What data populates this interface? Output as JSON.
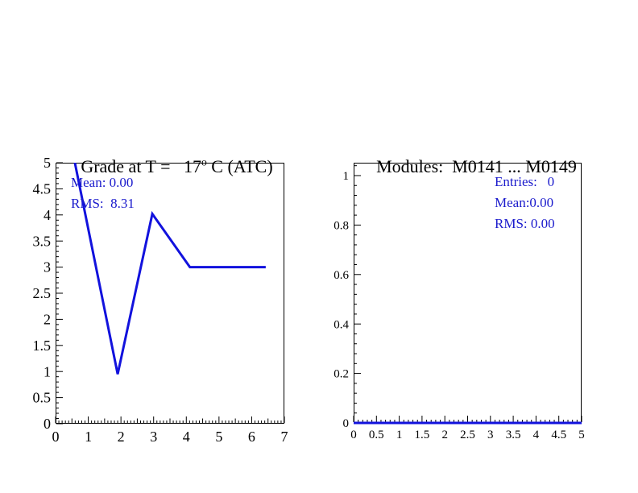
{
  "page": {
    "background": "#ffffff"
  },
  "colors": {
    "line": "#1212dd",
    "stats_text": "#1a1acc",
    "axis": "#000000"
  },
  "chart_data": [
    {
      "type": "line",
      "title": "Grade at T = 17° C (ATC)",
      "title_pre": "Grade at T =   17",
      "title_sup": "o",
      "title_post": " C (ATC)",
      "stats": [
        "Mean: 0.00",
        "RMS:  8.31"
      ],
      "xlim": [
        0,
        7
      ],
      "ylim": [
        0,
        5
      ],
      "xlabel": "",
      "ylabel": "",
      "grid": false,
      "legend": false,
      "xticks": [
        {
          "v": 0,
          "label": "0"
        },
        {
          "v": 1,
          "label": "1"
        },
        {
          "v": 2,
          "label": "2"
        },
        {
          "v": 3,
          "label": "3"
        },
        {
          "v": 4,
          "label": "4"
        },
        {
          "v": 5,
          "label": "5"
        },
        {
          "v": 6,
          "label": "6"
        },
        {
          "v": 7,
          "label": "7"
        }
      ],
      "yticks": [
        {
          "v": 0,
          "label": "0"
        },
        {
          "v": 0.5,
          "label": "0.5"
        },
        {
          "v": 1,
          "label": "1"
        },
        {
          "v": 1.5,
          "label": "1.5"
        },
        {
          "v": 2,
          "label": "2"
        },
        {
          "v": 2.5,
          "label": "2.5"
        },
        {
          "v": 3,
          "label": "3"
        },
        {
          "v": 3.5,
          "label": "3.5"
        },
        {
          "v": 4,
          "label": "4"
        },
        {
          "v": 4.5,
          "label": "4.5"
        },
        {
          "v": 5,
          "label": "5"
        }
      ],
      "x_minor_step": 0.1,
      "x_medium_step": 0.5,
      "y_minor_step": 0.1,
      "series": [
        {
          "name": "grade-line",
          "x": [
            0.59,
            1.9,
            2.96,
            4.11,
            6.43
          ],
          "y": [
            5.0,
            0.95,
            4.02,
            3.0,
            3.0
          ]
        }
      ]
    },
    {
      "type": "line",
      "title": "Modules:  M0141 ... M0149",
      "title_pre": "Modules:  M0141 ... M0149",
      "title_sup": "",
      "title_post": "",
      "stats": [
        "Entries:   0",
        "Mean:0.00",
        "RMS: 0.00"
      ],
      "xlim": [
        0,
        5
      ],
      "ylim": [
        0,
        1.052
      ],
      "xlabel": "",
      "ylabel": "",
      "grid": false,
      "legend": false,
      "xticks": [
        {
          "v": 0,
          "label": "0"
        },
        {
          "v": 0.5,
          "label": "0.5"
        },
        {
          "v": 1,
          "label": "1"
        },
        {
          "v": 1.5,
          "label": "1.5"
        },
        {
          "v": 2,
          "label": "2"
        },
        {
          "v": 2.5,
          "label": "2.5"
        },
        {
          "v": 3,
          "label": "3"
        },
        {
          "v": 3.5,
          "label": "3.5"
        },
        {
          "v": 4,
          "label": "4"
        },
        {
          "v": 4.5,
          "label": "4.5"
        },
        {
          "v": 5,
          "label": "5"
        }
      ],
      "yticks": [
        {
          "v": 0,
          "label": "0"
        },
        {
          "v": 0.2,
          "label": "0.2"
        },
        {
          "v": 0.4,
          "label": "0.4"
        },
        {
          "v": 0.6,
          "label": "0.6"
        },
        {
          "v": 0.8,
          "label": "0.8"
        },
        {
          "v": 1,
          "label": "1"
        }
      ],
      "x_minor_step": 0.1,
      "x_medium_step": null,
      "y_minor_step": 0.04,
      "series": [
        {
          "name": "modules-line",
          "x": [
            0,
            5
          ],
          "y": [
            0,
            0
          ]
        }
      ]
    }
  ]
}
